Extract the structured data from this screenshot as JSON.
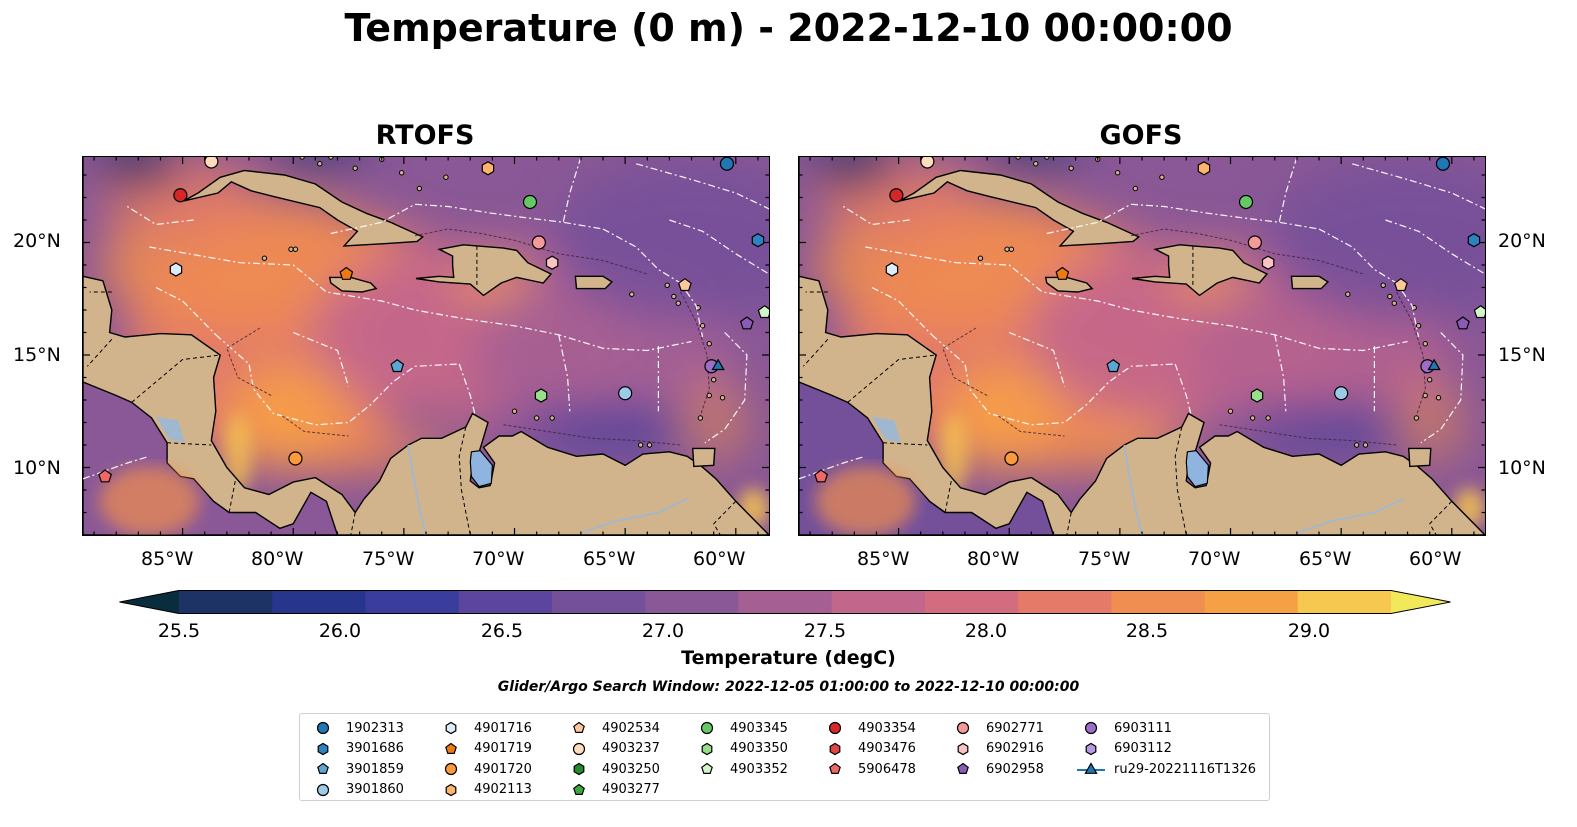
{
  "title": "Temperature (0 m) - 2022-12-10 00:00:00",
  "panels": [
    {
      "name": "RTOFS",
      "variant": "rtofs"
    },
    {
      "name": "GOFS",
      "variant": "gofs"
    }
  ],
  "lat_ticks": [
    "20°N",
    "15°N",
    "10°N"
  ],
  "lon_ticks": [
    "85°W",
    "80°W",
    "75°W",
    "70°W",
    "65°W",
    "60°W"
  ],
  "extent": {
    "lon_min": -89.5,
    "lon_max": -58.5,
    "lat_min": 7.0,
    "lat_max": 23.8
  },
  "colorbar": {
    "label": "Temperature (degC)",
    "ticks": [
      "25.5",
      "26.0",
      "26.5",
      "27.0",
      "27.5",
      "28.0",
      "28.5",
      "29.0"
    ],
    "range": [
      25.25,
      29.5
    ],
    "colors": [
      "#0a2d3d",
      "#1d3366",
      "#28358d",
      "#3a3c9e",
      "#5b459e",
      "#74509a",
      "#8a5896",
      "#a55f93",
      "#c2668c",
      "#d46c7f",
      "#e57a68",
      "#f08d50",
      "#f6a045",
      "#f7c84f",
      "#f1e85a"
    ]
  },
  "search_window": "Glider/Argo Search Window: 2022-12-05 01:00:00 to 2022-12-10 00:00:00",
  "legend": {
    "columns": [
      [
        {
          "id": "1902313",
          "marker": "circle",
          "color": "#1f77b4"
        },
        {
          "id": "3901686",
          "marker": "hexagon",
          "color": "#2f82c0"
        },
        {
          "id": "3901859",
          "marker": "pentagon",
          "color": "#5aa6d4"
        },
        {
          "id": "3901860",
          "marker": "circle",
          "color": "#9ccbe8"
        }
      ],
      [
        {
          "id": "4901716",
          "marker": "hexagon",
          "color": "#dcecfa"
        },
        {
          "id": "4901719",
          "marker": "pentagon",
          "color": "#f07a10"
        },
        {
          "id": "4901720",
          "marker": "circle",
          "color": "#fb9a3a"
        },
        {
          "id": "4902113",
          "marker": "hexagon",
          "color": "#fdb46c"
        }
      ],
      [
        {
          "id": "4902534",
          "marker": "pentagon",
          "color": "#fcc89a"
        },
        {
          "id": "4903237",
          "marker": "circle",
          "color": "#fddcbc"
        },
        {
          "id": "4903250",
          "marker": "hexagon",
          "color": "#238b2c"
        },
        {
          "id": "4903277",
          "marker": "pentagon",
          "color": "#3ca83a"
        }
      ],
      [
        {
          "id": "4903345",
          "marker": "circle",
          "color": "#66c766"
        },
        {
          "id": "4903350",
          "marker": "hexagon",
          "color": "#98df8a"
        },
        {
          "id": "4903352",
          "marker": "pentagon",
          "color": "#d2f5c8"
        }
      ],
      [
        {
          "id": "4903354",
          "marker": "circle",
          "color": "#d62728"
        },
        {
          "id": "4903476",
          "marker": "hexagon",
          "color": "#e04448"
        },
        {
          "id": "5906478",
          "marker": "pentagon",
          "color": "#f06866"
        }
      ],
      [
        {
          "id": "6902771",
          "marker": "circle",
          "color": "#f59a9a"
        },
        {
          "id": "6902916",
          "marker": "hexagon",
          "color": "#fbc4c4"
        },
        {
          "id": "6902958",
          "marker": "pentagon",
          "color": "#8a5cb5"
        }
      ],
      [
        {
          "id": "6903111",
          "marker": "circle",
          "color": "#9d6dc8"
        },
        {
          "id": "6903112",
          "marker": "hexagon",
          "color": "#b89ae0"
        },
        {
          "id": "ru29-20221116T1326",
          "marker": "triangle-line",
          "color": "#1f77b4"
        }
      ]
    ]
  },
  "platforms": [
    {
      "id": "1902313",
      "lon": -60.4,
      "lat": 23.5
    },
    {
      "id": "3901686",
      "lon": -59.0,
      "lat": 20.1
    },
    {
      "id": "3901859",
      "lon": -75.3,
      "lat": 14.5
    },
    {
      "id": "3901860",
      "lon": -65.0,
      "lat": 13.3
    },
    {
      "id": "4901716",
      "lon": -85.3,
      "lat": 18.8
    },
    {
      "id": "4901719",
      "lon": -77.6,
      "lat": 18.6
    },
    {
      "id": "4901720",
      "lon": -79.9,
      "lat": 10.4
    },
    {
      "id": "4903237",
      "lon": -83.7,
      "lat": 23.6
    },
    {
      "id": "4902113",
      "lon": -71.2,
      "lat": 23.3
    },
    {
      "id": "4902534",
      "lon": -62.3,
      "lat": 18.1
    },
    {
      "id": "4903345",
      "lon": -69.3,
      "lat": 21.8
    },
    {
      "id": "4903350",
      "lon": -68.8,
      "lat": 13.2
    },
    {
      "id": "4903352",
      "lon": -58.7,
      "lat": 16.9
    },
    {
      "id": "4903354",
      "lon": -85.1,
      "lat": 22.1
    },
    {
      "id": "5906478",
      "lon": -88.5,
      "lat": 9.6
    },
    {
      "id": "6902771",
      "lon": -68.9,
      "lat": 20.0
    },
    {
      "id": "6902916",
      "lon": -68.3,
      "lat": 19.1
    },
    {
      "id": "6902958",
      "lon": -59.5,
      "lat": 16.4
    },
    {
      "id": "6903111",
      "lon": -61.1,
      "lat": 14.5
    },
    {
      "id": "ru29-20221116T1326",
      "lon": -60.8,
      "lat": 14.5
    }
  ]
}
